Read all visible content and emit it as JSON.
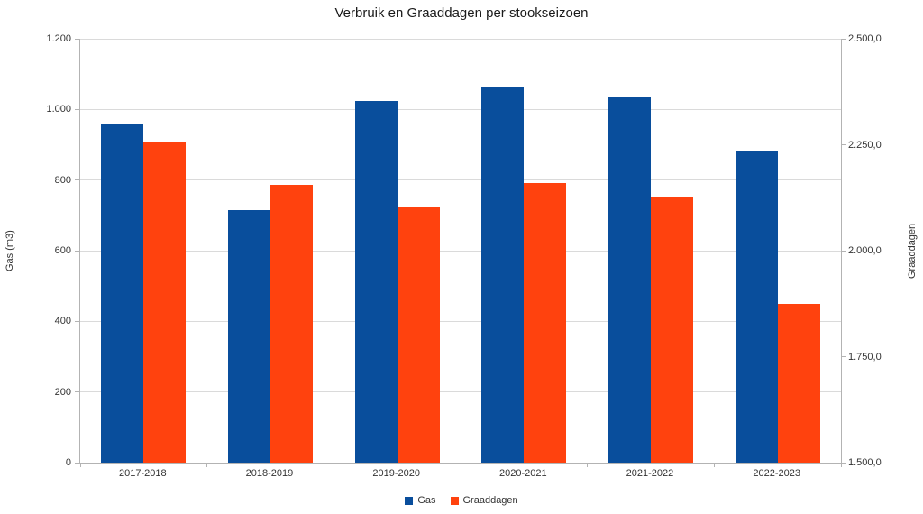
{
  "title": "Verbruik en Graaddagen per stookseizoen",
  "chart_data": {
    "type": "bar",
    "title": "Verbruik en Graaddagen per stookseizoen",
    "categories": [
      "2017-2018",
      "2018-2019",
      "2019-2020",
      "2020-2021",
      "2021-2022",
      "2022-2023"
    ],
    "series": [
      {
        "name": "Gas",
        "axis": "left",
        "color": "#094e9c",
        "values": [
          960,
          715,
          1025,
          1065,
          1035,
          880
        ]
      },
      {
        "name": "Graaddagen",
        "axis": "right",
        "color": "#ff420e",
        "values": [
          2255,
          2155,
          2105,
          2160,
          2125,
          1875
        ]
      }
    ],
    "left_axis": {
      "label": "Gas (m3)",
      "min": 0,
      "max": 1200,
      "tick_step": 200,
      "tick_labels": [
        "0",
        "200",
        "400",
        "600",
        "800",
        "1.000",
        "1.200"
      ]
    },
    "right_axis": {
      "label": "Graaddagen",
      "min": 1500,
      "max": 2500,
      "tick_step": 250,
      "tick_labels": [
        "1.500,0",
        "1.750,0",
        "2.000,0",
        "2.250,0",
        "2.500,0"
      ]
    },
    "grid": true,
    "legend_position": "bottom",
    "colors": {
      "gridline": "#dadada",
      "axis_line": "#b3b3b3",
      "text": "#333333"
    }
  }
}
